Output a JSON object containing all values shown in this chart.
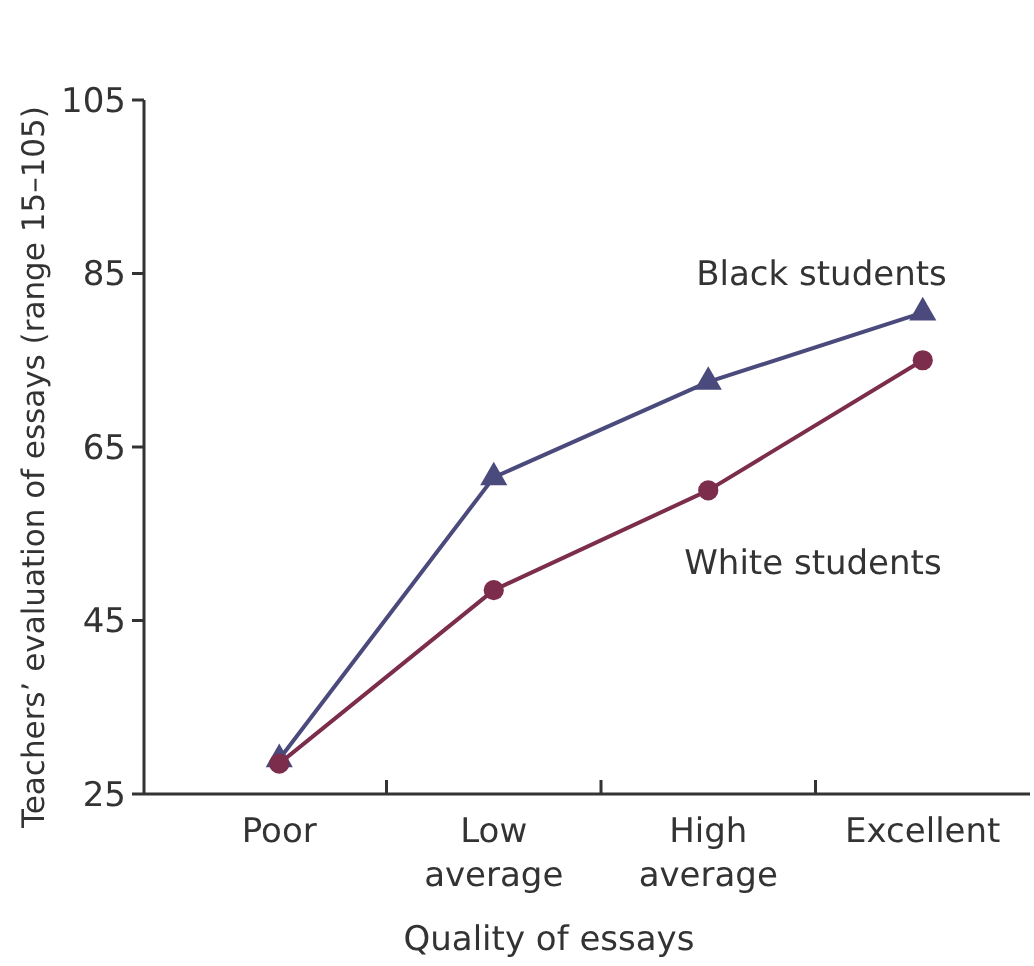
{
  "chart_data": {
    "type": "line",
    "xlabel": "Quality of essays",
    "ylabel": "Teachers’ evaluation of essays (range 15–105)",
    "categories": [
      "Poor",
      "Low average",
      "High average",
      "Excellent"
    ],
    "series": [
      {
        "name": "Black students",
        "color": "#4b4a7c",
        "marker": "triangle",
        "values": [
          29,
          61.5,
          72.5,
          80.5
        ]
      },
      {
        "name": "White students",
        "color": "#7b2d4b",
        "marker": "circle",
        "values": [
          28.5,
          48.5,
          60,
          75
        ]
      }
    ],
    "ylim": [
      25,
      105
    ],
    "yticks": [
      25,
      45,
      65,
      85,
      105
    ],
    "grid": false
  }
}
